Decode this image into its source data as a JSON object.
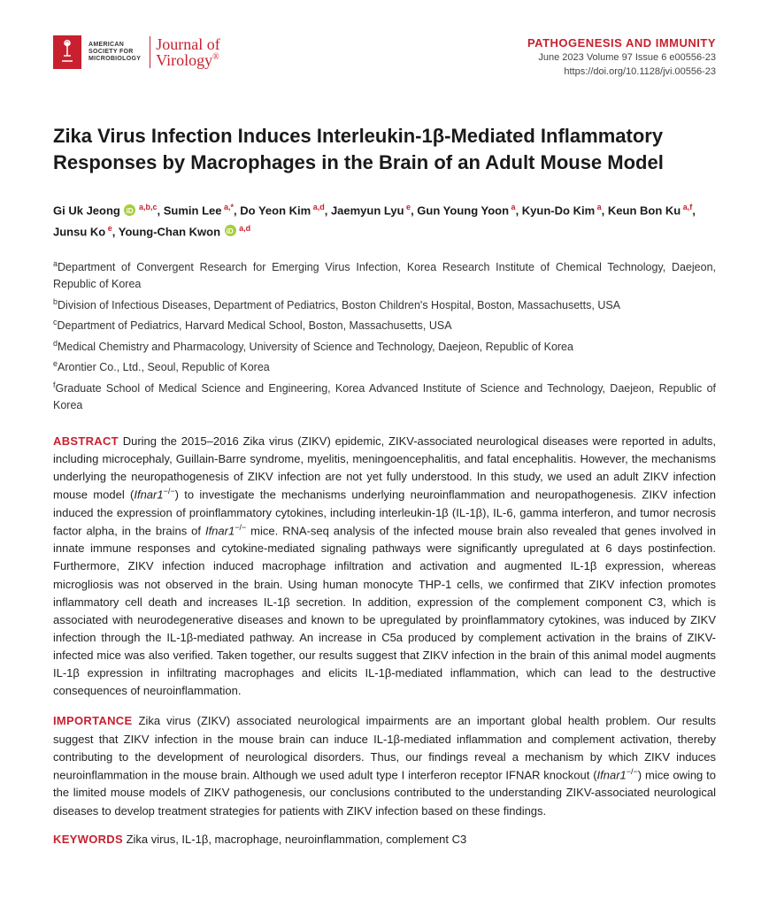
{
  "header": {
    "society_line1": "AMERICAN",
    "society_line2": "SOCIETY FOR",
    "society_line3": "MICROBIOLOGY",
    "journal_line1": "Journal of",
    "journal_line2": "Virology",
    "section_label": "PATHOGENESIS AND IMMUNITY",
    "issue_line": "June 2023  Volume 97  Issue 6  e00556-23",
    "doi": "https://doi.org/10.1128/jvi.00556-23"
  },
  "title": "Zika Virus Infection Induces Interleukin-1β-Mediated Inflammatory Responses by Macrophages in the Brain of an Adult Mouse Model",
  "authors": [
    {
      "name": "Gi Uk Jeong",
      "orcid": true,
      "sup": "a,b,c"
    },
    {
      "name": "Sumin Lee",
      "orcid": false,
      "sup": "a,*"
    },
    {
      "name": "Do Yeon Kim",
      "orcid": false,
      "sup": "a,d"
    },
    {
      "name": "Jaemyun Lyu",
      "orcid": false,
      "sup": "e"
    },
    {
      "name": "Gun Young Yoon",
      "orcid": false,
      "sup": "a"
    },
    {
      "name": "Kyun-Do Kim",
      "orcid": false,
      "sup": "a"
    },
    {
      "name": "Keun Bon Ku",
      "orcid": false,
      "sup": "a,f"
    },
    {
      "name": "Junsu Ko",
      "orcid": false,
      "sup": "e"
    },
    {
      "name": "Young-Chan Kwon",
      "orcid": true,
      "sup": "a,d"
    }
  ],
  "affiliations": {
    "a": "Department of Convergent Research for Emerging Virus Infection, Korea Research Institute of Chemical Technology, Daejeon, Republic of Korea",
    "b": "Division of Infectious Diseases, Department of Pediatrics, Boston Children's Hospital, Boston, Massachusetts, USA",
    "c": "Department of Pediatrics, Harvard Medical School, Boston, Massachusetts, USA",
    "d": "Medical Chemistry and Pharmacology, University of Science and Technology, Daejeon, Republic of Korea",
    "e": "Arontier Co., Ltd., Seoul, Republic of Korea",
    "f": "Graduate School of Medical Science and Engineering, Korea Advanced Institute of Science and Technology, Daejeon, Republic of Korea"
  },
  "abstract": {
    "label": "ABSTRACT",
    "text_pre": "During the 2015–2016 Zika virus (ZIKV) epidemic, ZIKV-associated neurological diseases were reported in adults, including microcephaly, Guillain-Barre syndrome, myelitis, meningoencephalitis, and fatal encephalitis. However, the mechanisms underlying the neuropathogenesis of ZIKV infection are not yet fully understood. In this study, we used an adult ZIKV infection mouse model (",
    "gene1": "Ifnar1",
    "super1": "−/−",
    "text_mid1": ") to investigate the mechanisms underlying neuroinflammation and neuropathogenesis. ZIKV infection induced the expression of proinflammatory cytokines, including interleukin-1β (IL-1β), IL-6, gamma interferon, and tumor necrosis factor alpha, in the brains of ",
    "gene2": "Ifnar1",
    "super2": "−/−",
    "text_post": " mice. RNA-seq analysis of the infected mouse brain also revealed that genes involved in innate immune responses and cytokine-mediated signaling pathways were significantly upregulated at 6 days postinfection. Furthermore, ZIKV infection induced macrophage infiltration and activation and augmented IL-1β expression, whereas microgliosis was not observed in the brain. Using human monocyte THP-1 cells, we confirmed that ZIKV infection promotes inflammatory cell death and increases IL-1β secretion. In addition, expression of the complement component C3, which is associated with neurodegenerative diseases and known to be upregulated by proinflammatory cytokines, was induced by ZIKV infection through the IL-1β-mediated pathway. An increase in C5a produced by complement activation in the brains of ZIKV-infected mice was also verified. Taken together, our results suggest that ZIKV infection in the brain of this animal model augments IL-1β expression in infiltrating macrophages and elicits IL-1β-mediated inflammation, which can lead to the destructive consequences of neuroinflammation."
  },
  "importance": {
    "label": "IMPORTANCE",
    "text_pre": "Zika virus (ZIKV) associated neurological impairments are an important global health problem. Our results suggest that ZIKV infection in the mouse brain can induce IL-1β-mediated inflammation and complement activation, thereby contributing to the development of neurological disorders. Thus, our findings reveal a mechanism by which ZIKV induces neuroinflammation in the mouse brain. Although we used adult type I interferon receptor IFNAR knockout (",
    "gene": "Ifnar1",
    "super": "−/−",
    "text_post": ") mice owing to the limited mouse models of ZIKV pathogenesis, our conclusions contributed to the understanding ZIKV-associated neurological diseases to develop treatment strategies for patients with ZIKV infection based on these findings."
  },
  "keywords": {
    "label": "KEYWORDS",
    "text": "Zika virus, IL-1β, macrophage, neuroinflammation, complement C3"
  },
  "colors": {
    "brand_red": "#c8202f",
    "text": "#333333",
    "orcid_green": "#a6ce39",
    "background": "#ffffff"
  },
  "typography": {
    "title_fontsize": 22,
    "body_fontsize": 13,
    "author_fontsize": 13,
    "affil_fontsize": 12.5,
    "meta_fontsize": 11
  }
}
